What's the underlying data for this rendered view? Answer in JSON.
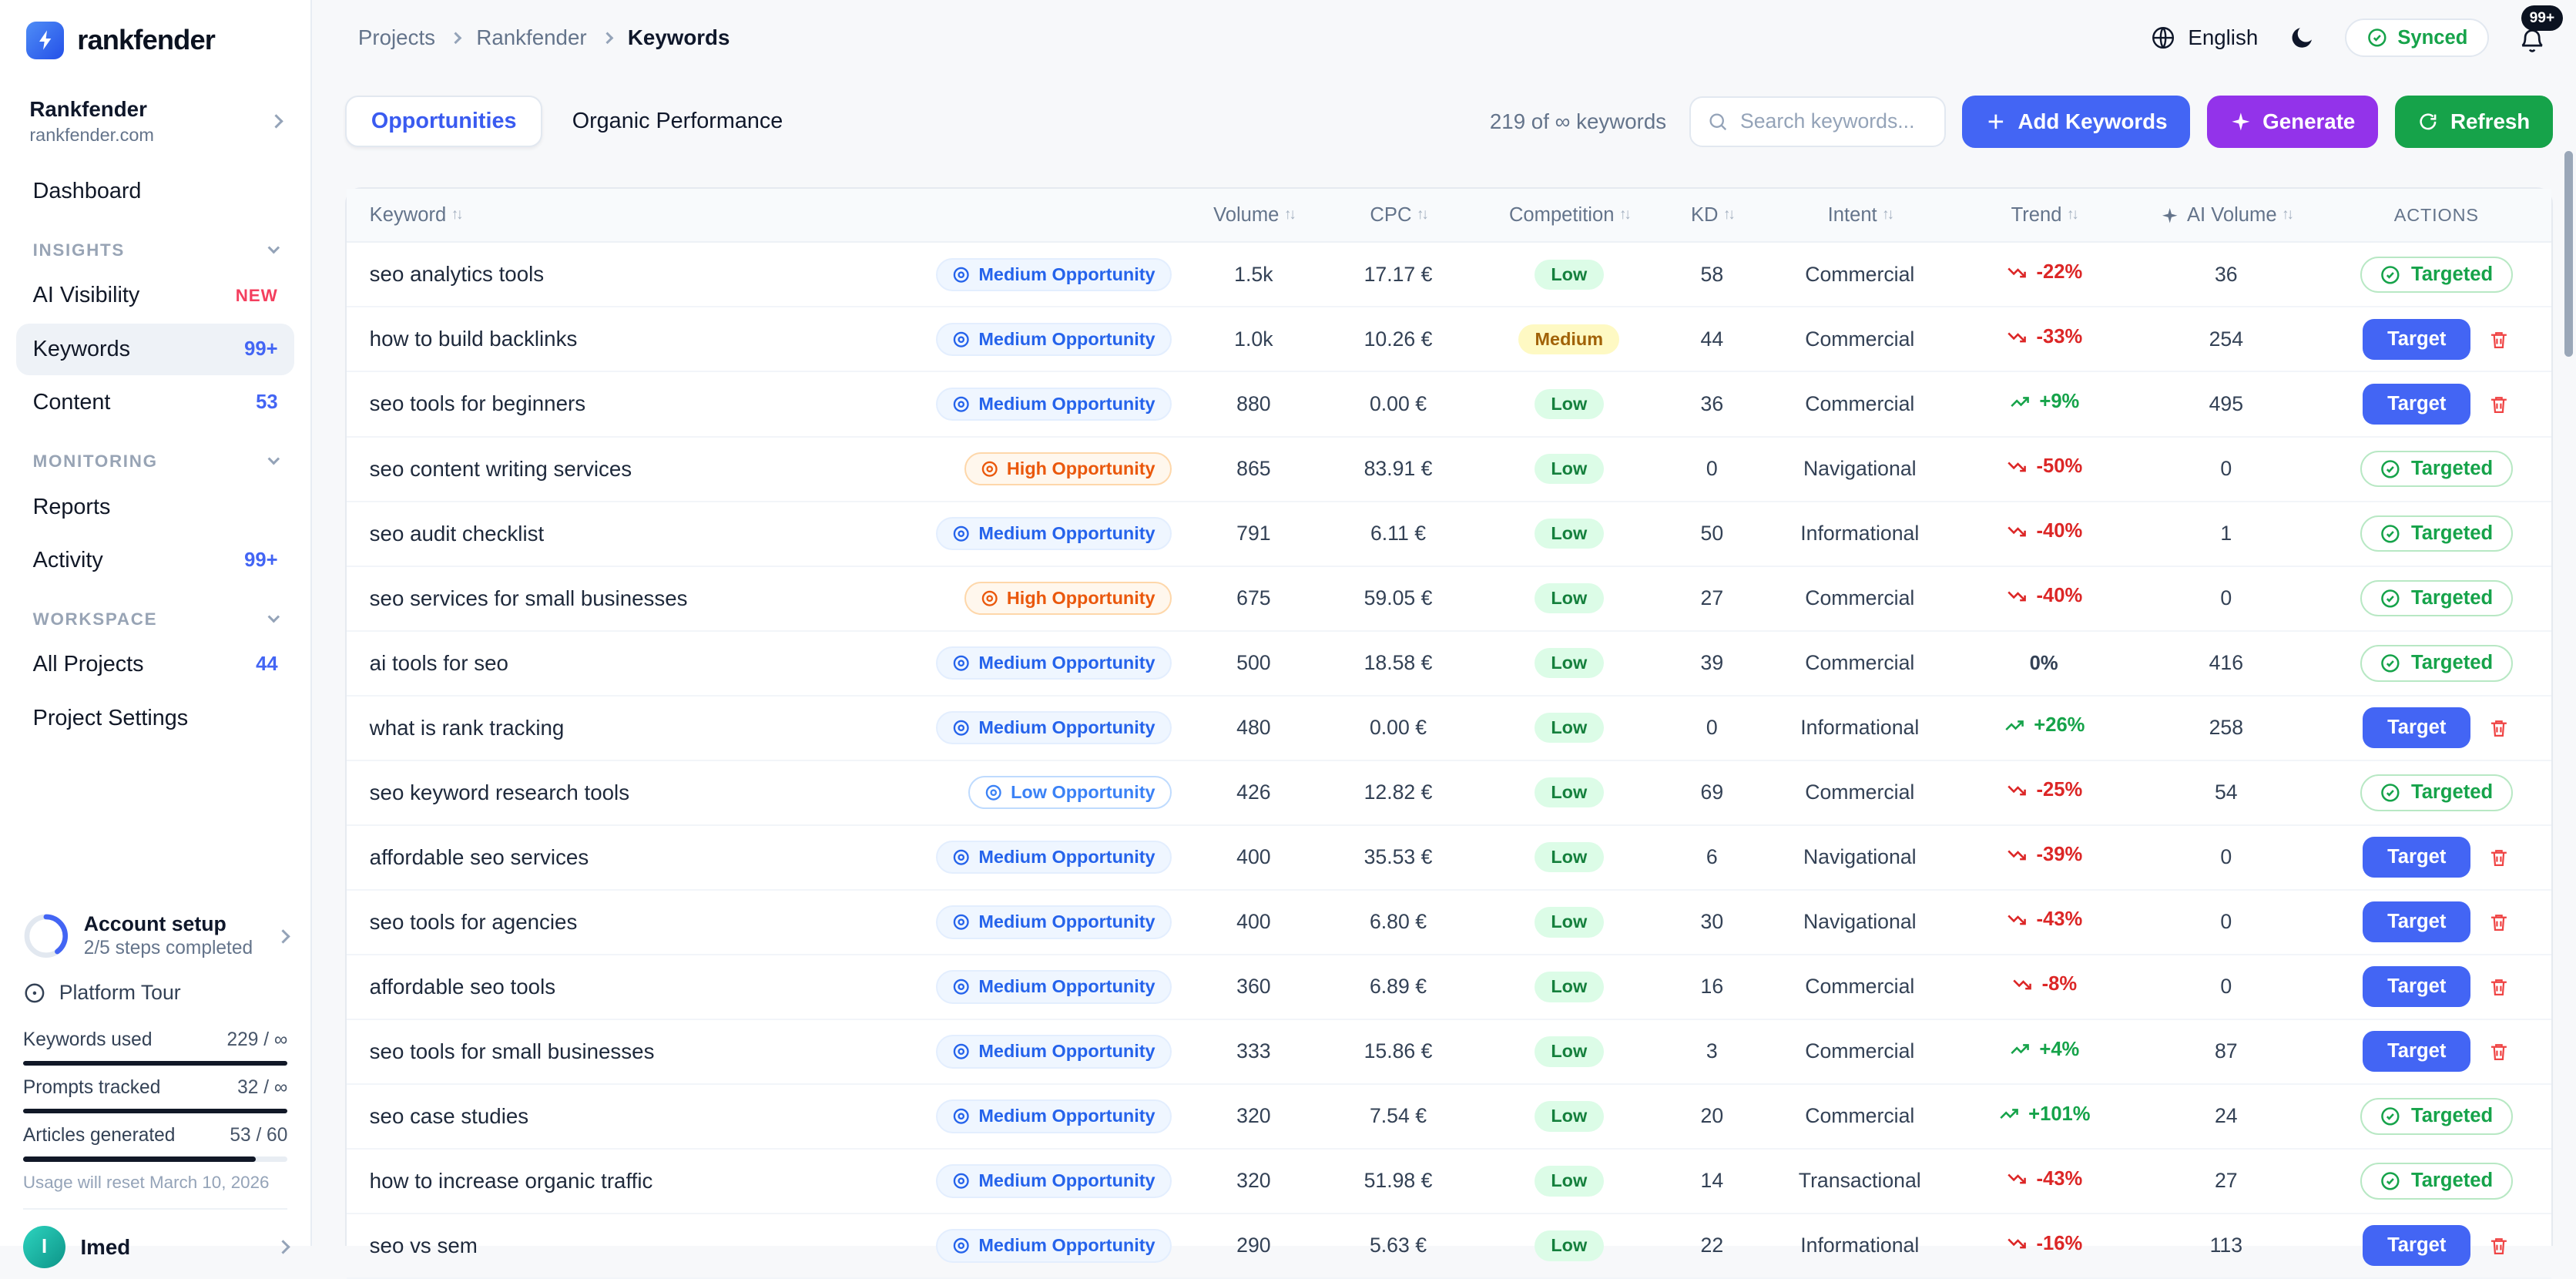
{
  "brand": {
    "name": "rankfender"
  },
  "colors": {
    "primary_blue": "#4365f4",
    "purple": "#9333ea",
    "green": "#16a34a",
    "red": "#dc2626",
    "badge_new": "#f43f5e",
    "low_pill_bg": "#dcfce7",
    "medium_pill_bg": "#fef9c3"
  },
  "icons": [
    "search-icon",
    "globe-icon",
    "moon-icon",
    "bell-icon",
    "check-circle-icon",
    "sparkles-icon",
    "refresh-icon",
    "plus-icon",
    "trash-icon",
    "bullseye-icon",
    "trending-up-icon",
    "trending-down-icon",
    "compass-icon",
    "chevron-icon",
    "bolt-logo-icon"
  ],
  "topbar": {
    "breadcrumb": [
      "Projects",
      "Rankfender",
      "Keywords"
    ],
    "language": "English",
    "synced_label": "Synced",
    "notifications_badge": "99+"
  },
  "sidebar": {
    "project": {
      "name": "Rankfender",
      "domain": "rankfender.com"
    },
    "nav": [
      {
        "type": "item",
        "label": "Dashboard"
      },
      {
        "type": "section",
        "label": "INSIGHTS"
      },
      {
        "type": "item",
        "label": "AI Visibility",
        "badge": "NEW",
        "badge_style": "new"
      },
      {
        "type": "item",
        "label": "Keywords",
        "badge": "99+",
        "badge_style": "count",
        "active": true
      },
      {
        "type": "item",
        "label": "Content",
        "badge": "53",
        "badge_style": "count"
      },
      {
        "type": "section",
        "label": "MONITORING"
      },
      {
        "type": "item",
        "label": "Reports"
      },
      {
        "type": "item",
        "label": "Activity",
        "badge": "99+",
        "badge_style": "count"
      },
      {
        "type": "section",
        "label": "WORKSPACE"
      },
      {
        "type": "item",
        "label": "All Projects",
        "badge": "44",
        "badge_style": "count"
      },
      {
        "type": "item",
        "label": "Project Settings"
      }
    ],
    "account_setup": {
      "title": "Account setup",
      "subtitle": "2/5 steps completed",
      "progress_pct": 40
    },
    "platform_tour_label": "Platform Tour",
    "usage": [
      {
        "label": "Keywords used",
        "value": "229 / ∞",
        "fill_pct": 100
      },
      {
        "label": "Prompts tracked",
        "value": "32 / ∞",
        "fill_pct": 100
      },
      {
        "label": "Articles generated",
        "value": "53 / 60",
        "fill_pct": 88
      }
    ],
    "usage_note": "Usage will reset March 10, 2026",
    "user": {
      "name": "Imed",
      "initial": "I"
    }
  },
  "toolbar": {
    "tabs": [
      {
        "label": "Opportunities",
        "active": true
      },
      {
        "label": "Organic Performance",
        "active": false
      }
    ],
    "count_text": "219 of ∞ keywords",
    "search_placeholder": "Search keywords...",
    "add_label": "Add Keywords",
    "generate_label": "Generate",
    "refresh_label": "Refresh"
  },
  "table": {
    "columns": [
      {
        "label": "Keyword",
        "sortable": true
      },
      {
        "label": "Volume",
        "sortable": true
      },
      {
        "label": "CPC",
        "sortable": true
      },
      {
        "label": "Competition",
        "sortable": true
      },
      {
        "label": "KD",
        "sortable": true
      },
      {
        "label": "Intent",
        "sortable": true
      },
      {
        "label": "Trend",
        "sortable": true
      },
      {
        "label": "AI Volume",
        "sortable": true,
        "icon": "sparkle"
      },
      {
        "label": "ACTIONS",
        "sortable": false
      }
    ],
    "action_labels": {
      "target": "Target",
      "targeted": "Targeted"
    },
    "rows": [
      {
        "keyword": "seo analytics tools",
        "opportunity": {
          "label": "Medium Opportunity",
          "level": "medium"
        },
        "volume": "1.5k",
        "cpc": "17.17 €",
        "competition": {
          "label": "Low",
          "level": "low"
        },
        "kd": "58",
        "intent": "Commercial",
        "trend": {
          "label": "-22%",
          "dir": "down"
        },
        "ai_volume": "36",
        "action": "targeted"
      },
      {
        "keyword": "how to build backlinks",
        "opportunity": {
          "label": "Medium Opportunity",
          "level": "medium"
        },
        "volume": "1.0k",
        "cpc": "10.26 €",
        "competition": {
          "label": "Medium",
          "level": "medium"
        },
        "kd": "44",
        "intent": "Commercial",
        "trend": {
          "label": "-33%",
          "dir": "down"
        },
        "ai_volume": "254",
        "action": "target"
      },
      {
        "keyword": "seo tools for beginners",
        "opportunity": {
          "label": "Medium Opportunity",
          "level": "medium"
        },
        "volume": "880",
        "cpc": "0.00 €",
        "competition": {
          "label": "Low",
          "level": "low"
        },
        "kd": "36",
        "intent": "Commercial",
        "trend": {
          "label": "+9%",
          "dir": "up"
        },
        "ai_volume": "495",
        "action": "target"
      },
      {
        "keyword": "seo content writing services",
        "opportunity": {
          "label": "High Opportunity",
          "level": "high"
        },
        "volume": "865",
        "cpc": "83.91 €",
        "competition": {
          "label": "Low",
          "level": "low"
        },
        "kd": "0",
        "intent": "Navigational",
        "trend": {
          "label": "-50%",
          "dir": "down"
        },
        "ai_volume": "0",
        "action": "targeted"
      },
      {
        "keyword": "seo audit checklist",
        "opportunity": {
          "label": "Medium Opportunity",
          "level": "medium"
        },
        "volume": "791",
        "cpc": "6.11 €",
        "competition": {
          "label": "Low",
          "level": "low"
        },
        "kd": "50",
        "intent": "Informational",
        "trend": {
          "label": "-40%",
          "dir": "down"
        },
        "ai_volume": "1",
        "action": "targeted"
      },
      {
        "keyword": "seo services for small businesses",
        "opportunity": {
          "label": "High Opportunity",
          "level": "high"
        },
        "volume": "675",
        "cpc": "59.05 €",
        "competition": {
          "label": "Low",
          "level": "low"
        },
        "kd": "27",
        "intent": "Commercial",
        "trend": {
          "label": "-40%",
          "dir": "down"
        },
        "ai_volume": "0",
        "action": "targeted"
      },
      {
        "keyword": "ai tools for seo",
        "opportunity": {
          "label": "Medium Opportunity",
          "level": "medium"
        },
        "volume": "500",
        "cpc": "18.58 €",
        "competition": {
          "label": "Low",
          "level": "low"
        },
        "kd": "39",
        "intent": "Commercial",
        "trend": {
          "label": "0%",
          "dir": "flat"
        },
        "ai_volume": "416",
        "action": "targeted"
      },
      {
        "keyword": "what is rank tracking",
        "opportunity": {
          "label": "Medium Opportunity",
          "level": "medium"
        },
        "volume": "480",
        "cpc": "0.00 €",
        "competition": {
          "label": "Low",
          "level": "low"
        },
        "kd": "0",
        "intent": "Informational",
        "trend": {
          "label": "+26%",
          "dir": "up"
        },
        "ai_volume": "258",
        "action": "target"
      },
      {
        "keyword": "seo keyword research tools",
        "opportunity": {
          "label": "Low Opportunity",
          "level": "low"
        },
        "volume": "426",
        "cpc": "12.82 €",
        "competition": {
          "label": "Low",
          "level": "low"
        },
        "kd": "69",
        "intent": "Commercial",
        "trend": {
          "label": "-25%",
          "dir": "down"
        },
        "ai_volume": "54",
        "action": "targeted"
      },
      {
        "keyword": "affordable seo services",
        "opportunity": {
          "label": "Medium Opportunity",
          "level": "medium"
        },
        "volume": "400",
        "cpc": "35.53 €",
        "competition": {
          "label": "Low",
          "level": "low"
        },
        "kd": "6",
        "intent": "Navigational",
        "trend": {
          "label": "-39%",
          "dir": "down"
        },
        "ai_volume": "0",
        "action": "target"
      },
      {
        "keyword": "seo tools for agencies",
        "opportunity": {
          "label": "Medium Opportunity",
          "level": "medium"
        },
        "volume": "400",
        "cpc": "6.80 €",
        "competition": {
          "label": "Low",
          "level": "low"
        },
        "kd": "30",
        "intent": "Navigational",
        "trend": {
          "label": "-43%",
          "dir": "down"
        },
        "ai_volume": "0",
        "action": "target"
      },
      {
        "keyword": "affordable seo tools",
        "opportunity": {
          "label": "Medium Opportunity",
          "level": "medium"
        },
        "volume": "360",
        "cpc": "6.89 €",
        "competition": {
          "label": "Low",
          "level": "low"
        },
        "kd": "16",
        "intent": "Commercial",
        "trend": {
          "label": "-8%",
          "dir": "down"
        },
        "ai_volume": "0",
        "action": "target"
      },
      {
        "keyword": "seo tools for small businesses",
        "opportunity": {
          "label": "Medium Opportunity",
          "level": "medium"
        },
        "volume": "333",
        "cpc": "15.86 €",
        "competition": {
          "label": "Low",
          "level": "low"
        },
        "kd": "3",
        "intent": "Commercial",
        "trend": {
          "label": "+4%",
          "dir": "up"
        },
        "ai_volume": "87",
        "action": "target"
      },
      {
        "keyword": "seo case studies",
        "opportunity": {
          "label": "Medium Opportunity",
          "level": "medium"
        },
        "volume": "320",
        "cpc": "7.54 €",
        "competition": {
          "label": "Low",
          "level": "low"
        },
        "kd": "20",
        "intent": "Commercial",
        "trend": {
          "label": "+101%",
          "dir": "up"
        },
        "ai_volume": "24",
        "action": "targeted"
      },
      {
        "keyword": "how to increase organic traffic",
        "opportunity": {
          "label": "Medium Opportunity",
          "level": "medium"
        },
        "volume": "320",
        "cpc": "51.98 €",
        "competition": {
          "label": "Low",
          "level": "low"
        },
        "kd": "14",
        "intent": "Transactional",
        "trend": {
          "label": "-43%",
          "dir": "down"
        },
        "ai_volume": "27",
        "action": "targeted"
      },
      {
        "keyword": "seo vs sem",
        "opportunity": {
          "label": "Medium Opportunity",
          "level": "medium"
        },
        "volume": "290",
        "cpc": "5.63 €",
        "competition": {
          "label": "Low",
          "level": "low"
        },
        "kd": "22",
        "intent": "Informational",
        "trend": {
          "label": "-16%",
          "dir": "down"
        },
        "ai_volume": "113",
        "action": "target"
      }
    ]
  }
}
